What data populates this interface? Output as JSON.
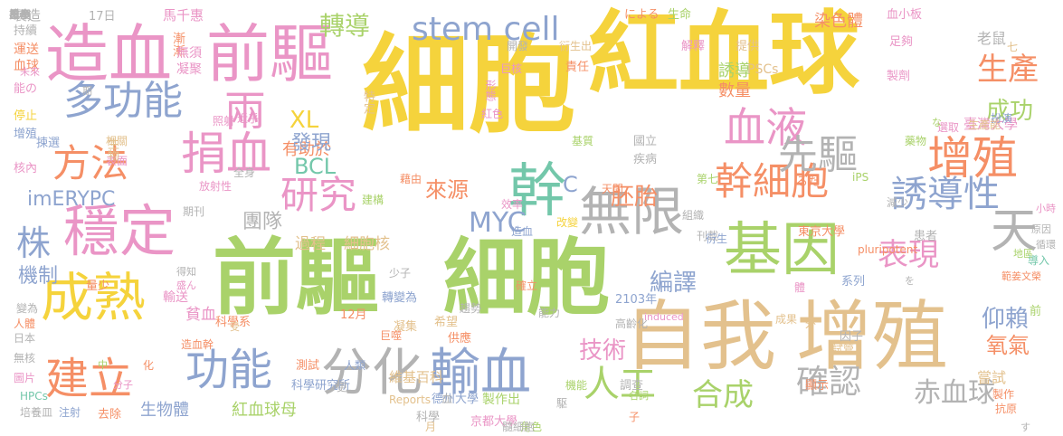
{
  "palette": {
    "yellow": "#f5d33c",
    "tan": "#e3c18d",
    "pink": "#ea95c6",
    "blue": "#8ea4cf",
    "green": "#a9d26a",
    "orange": "#f58f66",
    "gray": "#b3b3b3",
    "teal": "#73c7aa"
  },
  "words": [
    "細胞",
    "紅血球",
    "前驅",
    "細胞",
    "自我",
    "增殖",
    "基因",
    "幹",
    "無限",
    "分化",
    "輸血",
    "造血",
    "前驅",
    "成熟",
    "穩定",
    "功能",
    "捐血",
    "天",
    "增殖",
    "幹細胞",
    "多功能",
    "研究",
    "血液",
    "先驅",
    "誘導性",
    "方法",
    "建立",
    "stem cell",
    "確認",
    "人工",
    "合成",
    "表現",
    "株",
    "兩",
    "赤血球",
    "生產",
    "MYC",
    "BCL",
    "XL",
    "來源",
    "胚胎",
    "技術",
    "轉導",
    "編譯",
    "imERYPC",
    "團隊",
    "成功",
    "仰賴",
    "氧氣",
    "機制",
    "C",
    "有助於",
    "發現",
    "數量",
    "誘導",
    "染色體",
    "東京大學",
    "京都大學",
    "德州大學",
    "科學研究所",
    "生物體",
    "紅血球母",
    "細胞核",
    "過程",
    "貧血",
    "嘗試",
    "老鼠",
    "臺灣大學",
    "維基百科",
    "製作出",
    "製造",
    "持續",
    "運送",
    "血球",
    "能の",
    "停止",
    "增殖",
    "核內",
    "表面",
    "相關",
    "生物",
    "揀選",
    "期刊",
    "馬千惠",
    "漸漸",
    "無須",
    "凝聚",
    "17日",
    "開發",
    "巨核",
    "形態",
    "紅色",
    "衍生出",
    "提供",
    "解釋",
    "足夠",
    "製劑",
    "血小板",
    "生命",
    "による",
    "PSCs",
    "責任",
    "國立",
    "疾病",
    "藉由",
    "第七",
    "天間",
    "建構",
    "效率",
    "減少",
    "組織",
    "刊載",
    "iPS",
    "藥物",
    "選取",
    "扮演",
    "生產能",
    "小時",
    "原因",
    "循環",
    "地區",
    "導入",
    "範姜文榮",
    "系列",
    "pluripotent",
    "衍生",
    "患者",
    "induced",
    "高齡化",
    "2103年",
    "12月",
    "轉變為",
    "少子",
    "凝集",
    "希望",
    "能力",
    "成果",
    "外",
    "因子",
    "試管",
    "科學系",
    "造血幹",
    "輸送",
    "量少",
    "得知",
    "盛ん",
    "變為",
    "人體",
    "日本",
    "無核",
    "圖片",
    "HPCs",
    "培養皿",
    "注射",
    "去除",
    "中",
    "分子",
    "化",
    "測試",
    "人類",
    "Reports",
    "科學",
    "月",
    "角色",
    "駆",
    "子",
    "機能",
    "名詞",
    "調查",
    "顯示",
    "製作",
    "抗原",
    "受",
    "更",
    "血",
    "全身",
    "造血",
    "確立",
    "改變",
    "照射",
    "近乎",
    "七",
    "期",
    "未來",
    "放射性",
    "特定",
    "趨勢",
    "髓細胞",
    "基質",
    "るた",
    "供應",
    "巨噬",
    "前",
    "體",
    "す",
    "を",
    "な",
    "る",
    "投予",
    "めの",
    "生產",
    "原本",
    "至今",
    "抗",
    "星期"
  ]
}
